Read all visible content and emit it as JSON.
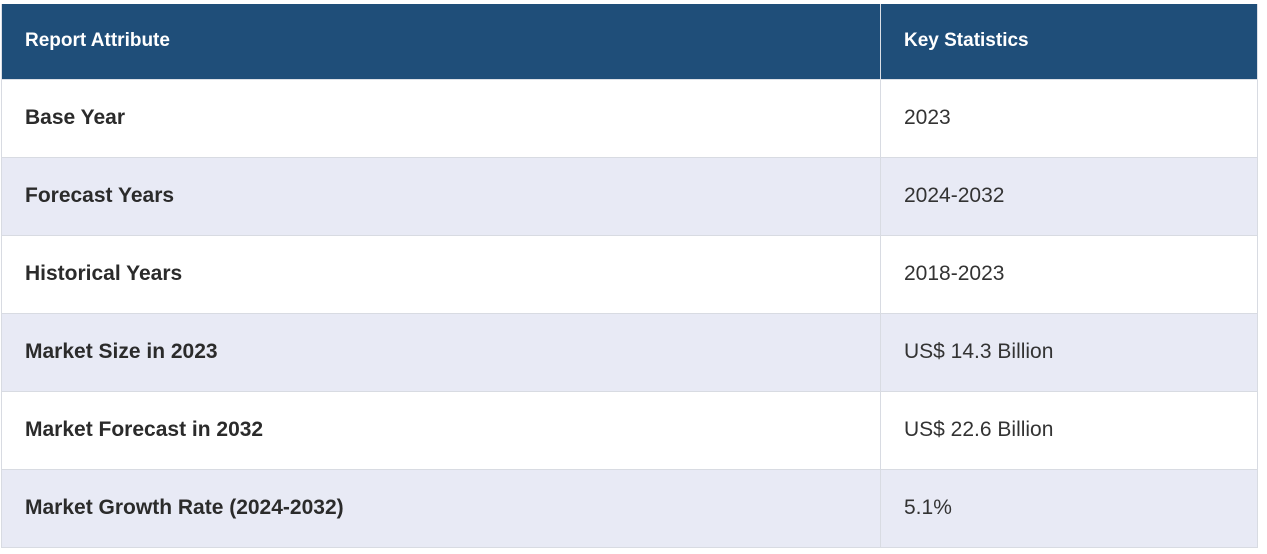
{
  "table": {
    "headers": {
      "attribute": "Report Attribute",
      "statistic": "Key Statistics"
    },
    "rows": [
      {
        "attribute": "Base Year",
        "value": "2023"
      },
      {
        "attribute": "Forecast Years",
        "value": "2024-2032"
      },
      {
        "attribute": "Historical Years",
        "value": "2018-2023"
      },
      {
        "attribute": "Market Size in 2023",
        "value": "US$ 14.3 Billion"
      },
      {
        "attribute": "Market Forecast in 2032",
        "value": "US$ 22.6 Billion"
      },
      {
        "attribute": "Market Growth Rate (2024-2032)",
        "value": "5.1%"
      }
    ]
  },
  "colors": {
    "header_bg": "#1f4e79",
    "header_text": "#ffffff",
    "row_alt_bg": "#e8eaf5",
    "row_bg": "#ffffff"
  }
}
